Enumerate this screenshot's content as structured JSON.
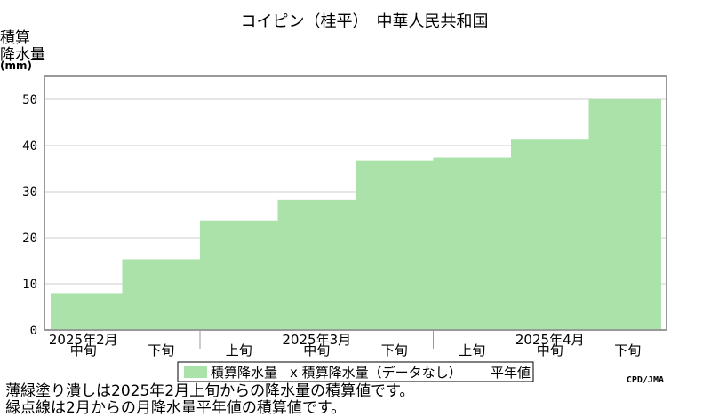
{
  "chart_data": {
    "type": "area",
    "title": "コイピン（桂平）　中華人民共和国",
    "ylabel_lines": [
      "積算",
      "降水量"
    ],
    "yunit": "(mm)",
    "ylim": [
      0,
      55
    ],
    "yticks": [
      0,
      10,
      20,
      30,
      40,
      50
    ],
    "periods": [
      "中旬",
      "下旬",
      "上旬",
      "中旬",
      "下旬",
      "上旬",
      "中旬",
      "下旬"
    ],
    "month_labels": [
      "2025年2月",
      "2025年3月",
      "2025年4月"
    ],
    "values": [
      8,
      15.3,
      23.7,
      28.3,
      36.8,
      37.4,
      41.3,
      50
    ],
    "normal_values": [],
    "legend": [
      "積算降水量",
      "x 積算降水量（データなし）",
      "平年値"
    ],
    "colors": {
      "fill": "#aae2aa",
      "frame": "#999999",
      "grid": "#cccccc"
    }
  },
  "credit": "CPD/JMA",
  "notes": [
    "薄緑塗り潰しは2025年2月上旬からの降水量の積算値です。",
    "緑点線は2月からの月降水量平年値の積算値です。"
  ]
}
